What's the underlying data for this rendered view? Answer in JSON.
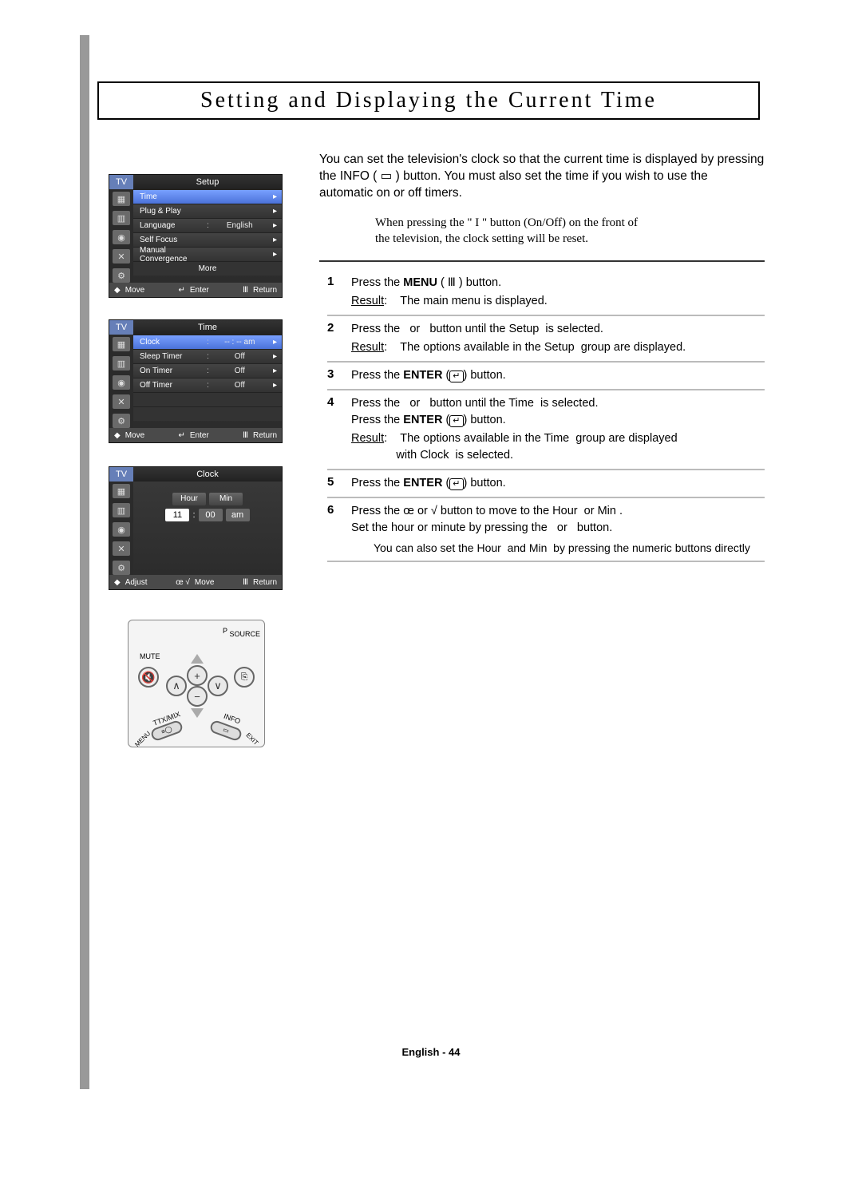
{
  "title": "Setting and Displaying the Current Time",
  "intro": "You can set the television's clock so that the current time is displayed by pressing the INFO ( ▭ ) button. You must also set the time if you wish to use the automatic on or off timers.",
  "note_line1": "When pressing the \" I \" button (On/Off) on the front of",
  "note_line2": "the television, the clock setting will be reset.",
  "osd_common": {
    "tv": "TV",
    "move": "Move",
    "enter": "Enter",
    "return": "Return",
    "adjust": "Adjust",
    "arrow": "▸",
    "updn_glyph": "◆",
    "enter_glyph": "↵",
    "menu_glyph": "Ⅲ",
    "lr_glyph": "œ √"
  },
  "setup_menu": {
    "title": "Setup",
    "icons": [
      "▦",
      "▥",
      "◉",
      "✕",
      "⚙"
    ],
    "rows": [
      {
        "label": "Time",
        "colon": "",
        "value": "",
        "selected": true,
        "arrow": true
      },
      {
        "label": "Plug & Play",
        "colon": "",
        "value": "",
        "selected": false,
        "arrow": true
      },
      {
        "label": "Language",
        "colon": ":",
        "value": "English",
        "selected": false,
        "arrow": true
      },
      {
        "label": "Self Focus",
        "colon": "",
        "value": "",
        "selected": false,
        "arrow": true
      },
      {
        "label": "Manual Convergence",
        "colon": "",
        "value": "",
        "selected": false,
        "arrow": true
      }
    ],
    "more": "More"
  },
  "time_menu": {
    "title": "Time",
    "icons": [
      "▦",
      "▥",
      "◉",
      "✕",
      "⚙"
    ],
    "rows": [
      {
        "label": "Clock",
        "colon": ":",
        "value": "-- : --   am",
        "selected": true,
        "arrow": true
      },
      {
        "label": "Sleep Timer",
        "colon": ":",
        "value": "Off",
        "selected": false,
        "arrow": true
      },
      {
        "label": "On Timer",
        "colon": ":",
        "value": "Off",
        "selected": false,
        "arrow": true
      },
      {
        "label": "Off Timer",
        "colon": ":",
        "value": "Off",
        "selected": false,
        "arrow": true
      }
    ]
  },
  "clock_menu": {
    "title": "Clock",
    "icons": [
      "▦",
      "▥",
      "◉",
      "✕",
      "⚙"
    ],
    "heads": {
      "hour": "Hour",
      "min": "Min"
    },
    "vals": {
      "hour": "11",
      "min": "00",
      "ampm": "am"
    }
  },
  "remote": {
    "mute": "MUTE",
    "p": "P",
    "source": "SOURCE",
    "ttx": "TTX/MIX",
    "info": "INFO",
    "menu": "MENU",
    "exit": "EXIT",
    "vol_minus": "−",
    "vol_plus": "+",
    "ch_up": "∧",
    "ch_dn": "∨",
    "src": "⎘"
  },
  "steps": [
    {
      "num": "1",
      "lines": [
        "Press the <b>MENU</b> ( Ⅲ ) button.",
        "<span class='u'>Result</span>:&nbsp;&nbsp;&nbsp;&nbsp;The main menu is displayed."
      ]
    },
    {
      "num": "2",
      "lines": [
        "Press the &nbsp; or &nbsp; button until the Setup &nbsp;is selected.",
        "<span class='u'>Result</span>:&nbsp;&nbsp;&nbsp;&nbsp;The options available in the Setup &nbsp;group are displayed."
      ]
    },
    {
      "num": "3",
      "lines": [
        "Press the <b>ENTER</b> (<span class='enter-glyph'>↵</span>) button."
      ]
    },
    {
      "num": "4",
      "lines": [
        "Press the &nbsp; or &nbsp; button until the Time &nbsp;is selected.<br>Press the <b>ENTER</b> (<span class='enter-glyph'>↵</span>) button.",
        "<span class='u'>Result</span>:&nbsp;&nbsp;&nbsp;&nbsp;The options available in the Time &nbsp;group are displayed<br>&nbsp;&nbsp;&nbsp;&nbsp;&nbsp;&nbsp;&nbsp;&nbsp;&nbsp;&nbsp;&nbsp;&nbsp;&nbsp;&nbsp;with Clock &nbsp;is selected."
      ]
    },
    {
      "num": "5",
      "lines": [
        "Press the <b>ENTER</b> (<span class='enter-glyph'>↵</span>) button."
      ]
    },
    {
      "num": "6",
      "lines": [
        "Press the œ or √ button to move to the Hour &nbsp;or Min .<br>Set the hour or minute by pressing the &nbsp; or &nbsp; button.",
        "<div class='foot-note'>You can also set the Hour &nbsp;and Min &nbsp;by pressing the numeric buttons directly</div>"
      ]
    }
  ],
  "page_footer": "English - 44"
}
